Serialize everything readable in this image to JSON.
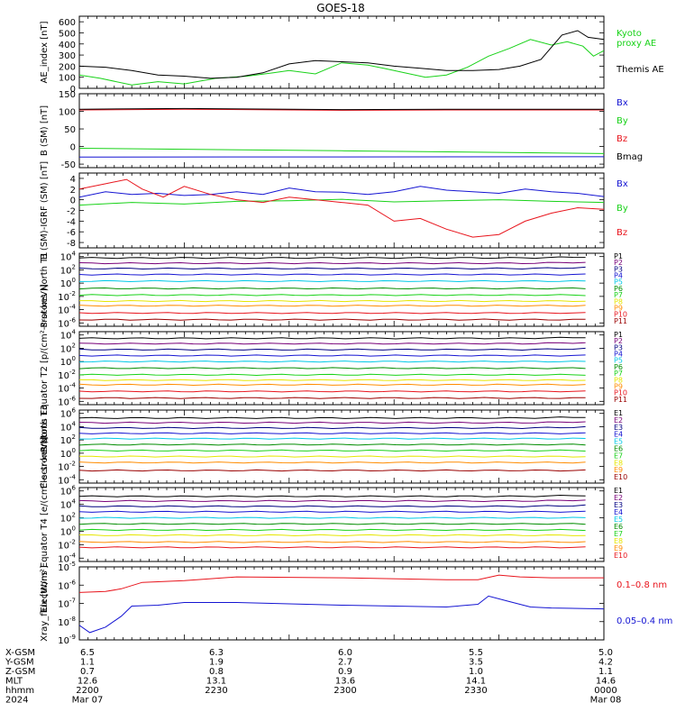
{
  "title": "GOES-18",
  "colors": {
    "black": "#000000",
    "red": "#e8141c",
    "green": "#18d218",
    "blue": "#1414d2",
    "dkred": "#9a0000",
    "orange": "#ff8c00",
    "yellow": "#e6e600",
    "cyan": "#00c8e6",
    "dkgreen": "#008c00",
    "navy": "#000080",
    "purple": "#780078"
  },
  "time_axis": {
    "rows": [
      {
        "label": "X-GSM",
        "values": [
          "6.5",
          "6.3",
          "6.0",
          "5.5",
          "5.0"
        ]
      },
      {
        "label": "Y-GSM",
        "values": [
          "1.1",
          "1.9",
          "2.7",
          "3.5",
          "4.2"
        ]
      },
      {
        "label": "Z-GSM",
        "values": [
          "0.7",
          "0.8",
          "0.9",
          "1.0",
          "1.1"
        ]
      },
      {
        "label": "MLT",
        "values": [
          "12.6",
          "13.1",
          "13.6",
          "14.1",
          "14.6"
        ]
      },
      {
        "label": "hhmm",
        "values": [
          "2200",
          "2230",
          "2300",
          "2330",
          "0000"
        ]
      },
      {
        "label": "2024",
        "values": [
          "Mar 07",
          "",
          "",
          "",
          "Mar 08"
        ]
      }
    ]
  },
  "chart_data": [
    {
      "type": "line",
      "id": "ae",
      "ylabel": "AE_index [nT]",
      "ylim": [
        0,
        650
      ],
      "yticks": [
        "0",
        "100",
        "200",
        "300",
        "400",
        "500",
        "600"
      ],
      "series": [
        {
          "name": "Kyoto proxy AE",
          "color": "green",
          "legend_lines": [
            "Kyoto",
            "proxy AE"
          ],
          "x": [
            0,
            0.04,
            0.1,
            0.15,
            0.2,
            0.26,
            0.32,
            0.37,
            0.4,
            0.45,
            0.5,
            0.55,
            0.58,
            0.62,
            0.66,
            0.7,
            0.74,
            0.78,
            0.82,
            0.86,
            0.9,
            0.93,
            0.96,
            0.98,
            1.0
          ],
          "y": [
            120,
            90,
            30,
            60,
            40,
            90,
            110,
            140,
            160,
            130,
            230,
            210,
            180,
            140,
            100,
            120,
            190,
            290,
            360,
            440,
            390,
            420,
            380,
            290,
            340
          ]
        },
        {
          "name": "Themis AE",
          "color": "black",
          "legend_lines": [
            "Themis AE"
          ],
          "x": [
            0,
            0.05,
            0.1,
            0.15,
            0.2,
            0.25,
            0.3,
            0.35,
            0.4,
            0.45,
            0.5,
            0.55,
            0.6,
            0.65,
            0.7,
            0.75,
            0.8,
            0.84,
            0.88,
            0.92,
            0.95,
            0.97,
            1.0
          ],
          "y": [
            200,
            190,
            160,
            120,
            110,
            90,
            100,
            140,
            220,
            250,
            240,
            230,
            200,
            180,
            160,
            160,
            170,
            200,
            260,
            480,
            520,
            460,
            440
          ]
        }
      ]
    },
    {
      "type": "line",
      "id": "bsm",
      "ylabel": "B (SM) [nT]",
      "ylim": [
        -60,
        150
      ],
      "yticks": [
        "-50",
        "0",
        "50",
        "100",
        "150"
      ],
      "series": [
        {
          "name": "Bx",
          "color": "blue",
          "x": [
            0,
            1
          ],
          "y": [
            -30,
            -29
          ]
        },
        {
          "name": "By",
          "color": "green",
          "x": [
            0,
            0.5,
            1
          ],
          "y": [
            -5,
            -12,
            -20
          ]
        },
        {
          "name": "Bz",
          "color": "red",
          "x": [
            0,
            0.2,
            0.5,
            0.7,
            1
          ],
          "y": [
            104,
            106,
            103,
            104,
            104
          ]
        },
        {
          "name": "Bmag",
          "color": "black",
          "x": [
            0,
            0.2,
            0.5,
            0.7,
            1
          ],
          "y": [
            106,
            108,
            105,
            106,
            106
          ]
        }
      ]
    },
    {
      "type": "line",
      "id": "dbsm",
      "ylabel": "B (SM)-IGRF (SM) [nT]",
      "ylim": [
        -9,
        5
      ],
      "yticks": [
        "-8",
        "-6",
        "-4",
        "-2",
        "0",
        "2",
        "4"
      ],
      "series": [
        {
          "name": "Bx",
          "color": "blue",
          "x": [
            0,
            0.05,
            0.1,
            0.15,
            0.2,
            0.25,
            0.3,
            0.35,
            0.4,
            0.45,
            0.5,
            0.55,
            0.6,
            0.65,
            0.7,
            0.75,
            0.8,
            0.85,
            0.9,
            0.95,
            1.0
          ],
          "y": [
            0.5,
            1.5,
            1.0,
            1.2,
            0.8,
            1.0,
            1.5,
            1.0,
            2.2,
            1.5,
            1.4,
            1.0,
            1.5,
            2.5,
            1.8,
            1.5,
            1.2,
            2.0,
            1.5,
            1.2,
            0.6
          ]
        },
        {
          "name": "By",
          "color": "green",
          "x": [
            0,
            0.1,
            0.2,
            0.3,
            0.4,
            0.5,
            0.6,
            0.7,
            0.8,
            0.9,
            1.0
          ],
          "y": [
            -1.0,
            -0.5,
            -0.8,
            -0.3,
            -0.2,
            0.1,
            -0.4,
            -0.2,
            0.0,
            -0.3,
            -0.5
          ]
        },
        {
          "name": "Bz",
          "color": "red",
          "x": [
            0,
            0.05,
            0.09,
            0.12,
            0.16,
            0.2,
            0.25,
            0.3,
            0.35,
            0.4,
            0.45,
            0.5,
            0.55,
            0.6,
            0.65,
            0.7,
            0.75,
            0.8,
            0.85,
            0.9,
            0.95,
            1.0
          ],
          "y": [
            2.0,
            3.0,
            3.8,
            2.0,
            0.5,
            2.5,
            1.0,
            0.0,
            -0.5,
            0.5,
            0.0,
            -0.5,
            -1.0,
            -4.0,
            -3.5,
            -5.5,
            -7.0,
            -6.5,
            -4.0,
            -2.5,
            -1.5,
            -1.8
          ]
        }
      ]
    },
    {
      "type": "line",
      "id": "pn",
      "ylabel": "Protons North T1",
      "log": true,
      "ylim": [
        -6.5,
        4.5
      ],
      "yticks": [
        {
          "e": "-6"
        },
        {
          "e": "-4"
        },
        {
          "e": "-2"
        },
        {
          "e": "0"
        },
        {
          "e": "2"
        },
        {
          "e": "4"
        }
      ],
      "series": [
        {
          "name": "P1",
          "color": "black",
          "y": 3.8
        },
        {
          "name": "P2",
          "color": "purple",
          "y": 3.0
        },
        {
          "name": "P3",
          "color": "navy",
          "y": 2.2
        },
        {
          "name": "P4",
          "color": "blue",
          "y": 1.3
        },
        {
          "name": "P5",
          "color": "cyan",
          "y": 0.3
        },
        {
          "name": "P6",
          "color": "dkgreen",
          "y": -0.8
        },
        {
          "name": "P7",
          "color": "green",
          "y": -1.8
        },
        {
          "name": "P8",
          "color": "yellow",
          "y": -2.7
        },
        {
          "name": "P9",
          "color": "orange",
          "y": -3.4
        },
        {
          "name": "P10",
          "color": "red",
          "y": -4.5
        },
        {
          "name": "P11",
          "color": "dkred",
          "y": -5.5
        }
      ]
    },
    {
      "type": "line",
      "id": "pe",
      "ylabel": "Protons Equator T2 [p/(cm²-s-sr-keV)]",
      "log": true,
      "ylim": [
        -6.5,
        4.5
      ],
      "yticks": [
        {
          "e": "-6"
        },
        {
          "e": "-4"
        },
        {
          "e": "-2"
        },
        {
          "e": "0"
        },
        {
          "e": "2"
        },
        {
          "e": "4"
        }
      ],
      "series": [
        {
          "name": "P1",
          "color": "black",
          "y": 3.5
        },
        {
          "name": "P2",
          "color": "purple",
          "y": 2.7
        },
        {
          "name": "P3",
          "color": "navy",
          "y": 1.8
        },
        {
          "name": "P4",
          "color": "blue",
          "y": 0.9
        },
        {
          "name": "P5",
          "color": "cyan",
          "y": 0.0
        },
        {
          "name": "P6",
          "color": "dkgreen",
          "y": -1.0
        },
        {
          "name": "P7",
          "color": "green",
          "y": -2.0
        },
        {
          "name": "P8",
          "color": "yellow",
          "y": -2.8
        },
        {
          "name": "P9",
          "color": "orange",
          "y": -3.5
        },
        {
          "name": "P10",
          "color": "red",
          "y": -4.5
        },
        {
          "name": "P11",
          "color": "dkred",
          "y": -5.5
        }
      ]
    },
    {
      "type": "line",
      "id": "en",
      "ylabel": "Electrons North T3",
      "log": true,
      "ylim": [
        -4.5,
        6.5
      ],
      "yticks": [
        {
          "e": "-4"
        },
        {
          "e": "-2"
        },
        {
          "e": "0"
        },
        {
          "e": "2"
        },
        {
          "e": "4"
        },
        {
          "e": "6"
        }
      ],
      "series": [
        {
          "name": "E1",
          "color": "black",
          "y": 5.3
        },
        {
          "name": "E2",
          "color": "purple",
          "y": 4.6
        },
        {
          "name": "E3",
          "color": "navy",
          "y": 3.8
        },
        {
          "name": "E4",
          "color": "blue",
          "y": 3.0
        },
        {
          "name": "E5",
          "color": "cyan",
          "y": 2.2
        },
        {
          "name": "E6",
          "color": "dkgreen",
          "y": 1.3
        },
        {
          "name": "E7",
          "color": "green",
          "y": 0.4
        },
        {
          "name": "E8",
          "color": "yellow",
          "y": -0.5
        },
        {
          "name": "E9",
          "color": "orange",
          "y": -1.4
        },
        {
          "name": "E10",
          "color": "dkred",
          "y": -2.6
        }
      ]
    },
    {
      "type": "line",
      "id": "ee",
      "ylabel": "Electrons Equator T4 [e/(cm²-s-sr-keV)]",
      "log": true,
      "ylim": [
        -4.5,
        6.5
      ],
      "yticks": [
        {
          "e": "-4"
        },
        {
          "e": "-2"
        },
        {
          "e": "0"
        },
        {
          "e": "2"
        },
        {
          "e": "4"
        },
        {
          "e": "6"
        }
      ],
      "series": [
        {
          "name": "E1",
          "color": "black",
          "y": 5.2
        },
        {
          "name": "E2",
          "color": "purple",
          "y": 4.5
        },
        {
          "name": "E3",
          "color": "navy",
          "y": 3.7
        },
        {
          "name": "E4",
          "color": "blue",
          "y": 2.9
        },
        {
          "name": "E5",
          "color": "cyan",
          "y": 2.0
        },
        {
          "name": "E6",
          "color": "dkgreen",
          "y": 1.1
        },
        {
          "name": "E7",
          "color": "green",
          "y": 0.2
        },
        {
          "name": "E8",
          "color": "yellow",
          "y": -0.6
        },
        {
          "name": "E9",
          "color": "orange",
          "y": -1.6
        },
        {
          "name": "E10",
          "color": "red",
          "y": -2.4
        }
      ]
    },
    {
      "type": "line",
      "id": "xray",
      "ylabel": "Xray_flux [W/m²]",
      "log": true,
      "ylim": [
        -9,
        -5
      ],
      "yticks": [
        {
          "e": "-9"
        },
        {
          "e": "-8"
        },
        {
          "e": "-7"
        },
        {
          "e": "-6"
        },
        {
          "e": "-5"
        }
      ],
      "series": [
        {
          "name": "0.1–0.8 nm",
          "color": "red",
          "x": [
            0,
            0.05,
            0.08,
            0.12,
            0.2,
            0.3,
            0.5,
            0.7,
            0.76,
            0.8,
            0.84,
            0.9,
            1.0
          ],
          "y": [
            -6.4,
            -6.35,
            -6.2,
            -5.85,
            -5.75,
            -5.55,
            -5.6,
            -5.7,
            -5.7,
            -5.45,
            -5.55,
            -5.6,
            -5.6
          ]
        },
        {
          "name": "0.05–0.4 nm",
          "color": "blue",
          "x": [
            0,
            0.02,
            0.05,
            0.08,
            0.1,
            0.15,
            0.2,
            0.3,
            0.5,
            0.7,
            0.76,
            0.78,
            0.82,
            0.86,
            0.9,
            1.0
          ],
          "y": [
            -8.2,
            -8.6,
            -8.3,
            -7.7,
            -7.15,
            -7.1,
            -6.95,
            -6.95,
            -7.1,
            -7.2,
            -7.05,
            -6.6,
            -6.9,
            -7.2,
            -7.25,
            -7.3
          ]
        }
      ]
    }
  ]
}
